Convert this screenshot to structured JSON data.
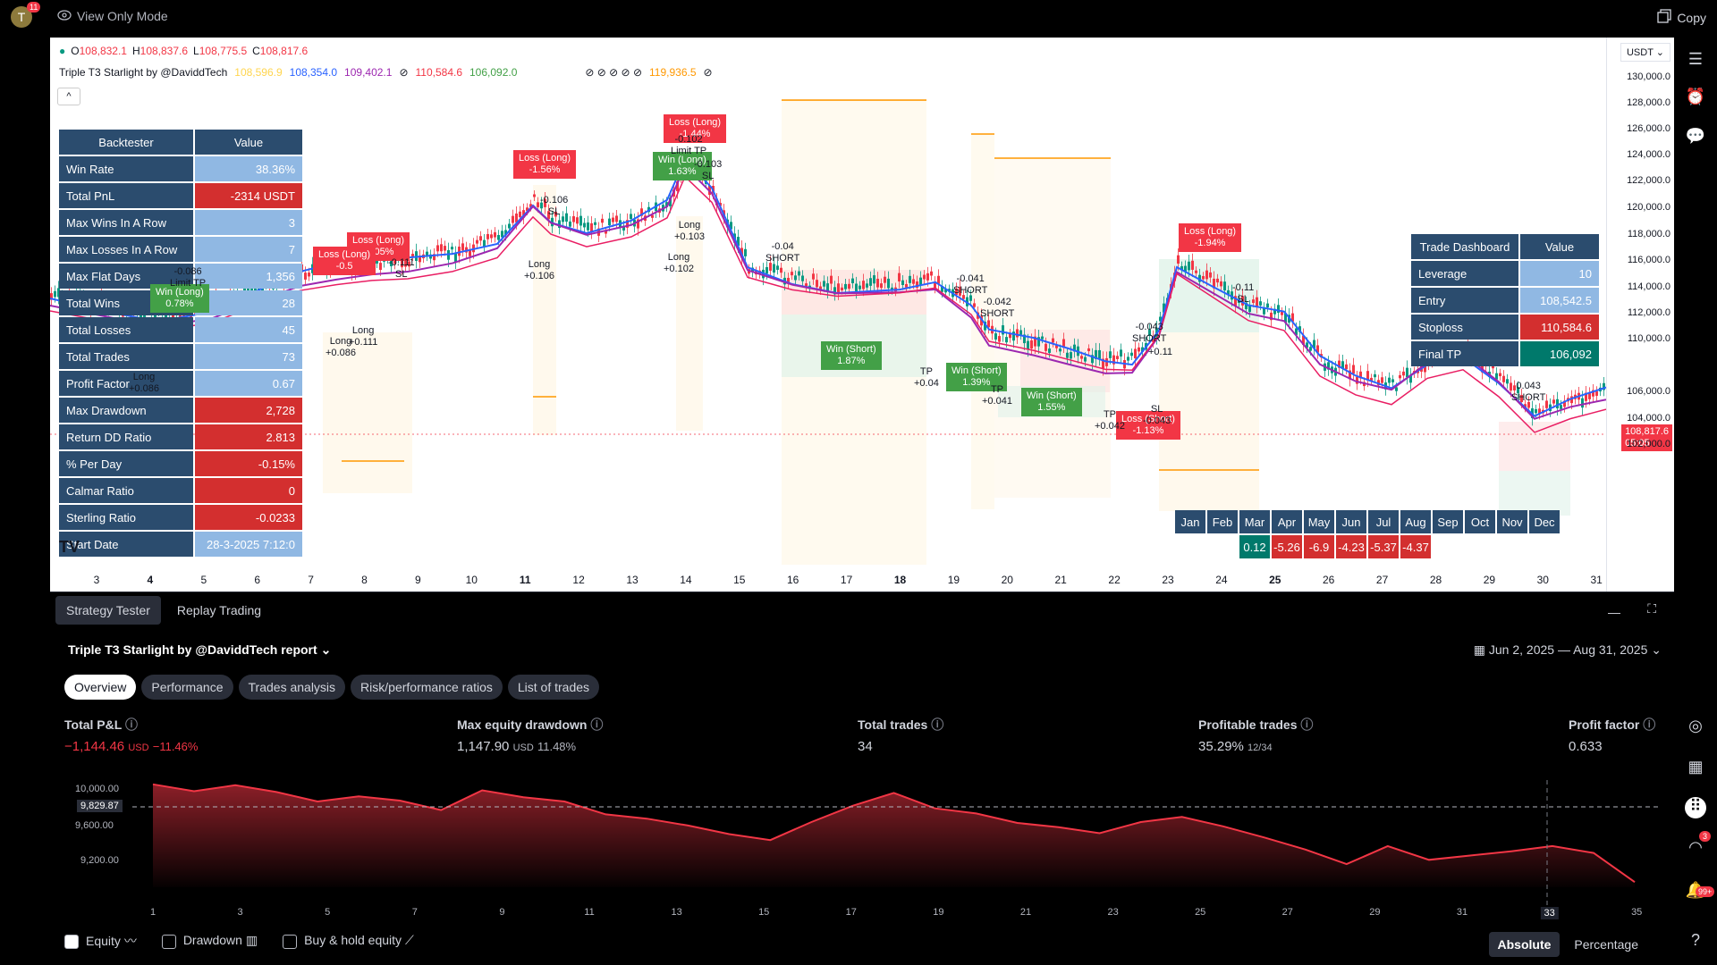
{
  "topbar": {
    "avatar": "T",
    "avatar_badge": "11",
    "view_only": "View Only Mode",
    "copy": "Copy"
  },
  "ohlc": {
    "o_label": "O",
    "o": "108,832.1",
    "h_label": "H",
    "h": "108,837.6",
    "l_label": "L",
    "l": "108,775.5",
    "c_label": "C",
    "c": "108,817.6"
  },
  "indicator": {
    "name": "Triple T3 Starlight by @DaviddTech",
    "vals": [
      "108,596.9",
      "108,354.0",
      "109,402.1",
      "110,584.6",
      "106,092.0",
      "119,936.5"
    ],
    "colors": [
      "#ffd54f",
      "#2962ff",
      "#9c27b0",
      "#f23645",
      "#43a047",
      "#ff9800"
    ]
  },
  "collapse": "^",
  "backtester": {
    "header": [
      "Backtester",
      "Value"
    ],
    "rows": [
      {
        "k": "Win Rate",
        "v": "38.36%",
        "red": false
      },
      {
        "k": "Total PnL",
        "v": "-2314 USDT",
        "red": true
      },
      {
        "k": "Max Wins In A Row",
        "v": "3",
        "red": false
      },
      {
        "k": "Max Losses In A Row",
        "v": "7",
        "red": false
      },
      {
        "k": "Max Flat Days",
        "v": "1,356",
        "red": false
      },
      {
        "k": "Total Wins",
        "v": "28",
        "red": false
      },
      {
        "k": "Total Losses",
        "v": "45",
        "red": false
      },
      {
        "k": "Total Trades",
        "v": "73",
        "red": false
      },
      {
        "k": "Profit Factor",
        "v": "0.67",
        "red": false
      },
      {
        "k": "Max Drawdown",
        "v": "2,728",
        "red": true
      },
      {
        "k": "Return DD Ratio",
        "v": "2.813",
        "red": true
      },
      {
        "k": "% Per Day",
        "v": "-0.15%",
        "red": true
      },
      {
        "k": "Calmar Ratio",
        "v": "0",
        "red": true
      },
      {
        "k": "Sterling Ratio",
        "v": "-0.0233",
        "red": true
      },
      {
        "k": "Start Date",
        "v": "28-3-2025 7:12:0",
        "red": false
      }
    ]
  },
  "trade_dashboard": {
    "header": [
      "Trade Dashboard",
      "Value"
    ],
    "rows": [
      {
        "k": "Leverage",
        "v": "10",
        "c": ""
      },
      {
        "k": "Entry",
        "v": "108,542.5",
        "c": ""
      },
      {
        "k": "Stoploss",
        "v": "110,584.6",
        "c": "r"
      },
      {
        "k": "Final TP",
        "v": "106,092",
        "c": "g"
      }
    ]
  },
  "monthly": {
    "months": [
      "Jan",
      "Feb",
      "Mar",
      "Apr",
      "May",
      "Jun",
      "Jul",
      "Aug",
      "Sep",
      "Oct",
      "Nov",
      "Dec"
    ],
    "values": [
      "",
      "",
      "0.12",
      "-5.26",
      "-6.9",
      "-4.23",
      "-5.37",
      "-4.37",
      "",
      "",
      "",
      ""
    ]
  },
  "price_axis": {
    "currency": "USDT",
    "labels": [
      "130,000.0",
      "128,000.0",
      "126,000.0",
      "124,000.0",
      "122,000.0",
      "120,000.0",
      "118,000.0",
      "116,000.0",
      "114,000.0",
      "112,000.0",
      "110,000.0",
      "106,000.0",
      "104,000.0",
      "102,000.0"
    ],
    "current": "108,817.6",
    "countdown": "05:05"
  },
  "time_axis": [
    "3",
    "4",
    "5",
    "6",
    "7",
    "8",
    "9",
    "10",
    "11",
    "12",
    "13",
    "14",
    "15",
    "16",
    "17",
    "18",
    "19",
    "20",
    "21",
    "22",
    "23",
    "24",
    "25",
    "26",
    "27",
    "28",
    "29",
    "30",
    "31"
  ],
  "trades": [
    {
      "t": "loss",
      "text": "Loss (Long)\n-1.56%"
    },
    {
      "t": "loss",
      "text": "Loss (Long)\n-1.44%"
    },
    {
      "t": "loss",
      "text": "Loss (Long)\n-1.05%"
    },
    {
      "t": "loss",
      "text": "Loss (Long)\n-0.5"
    },
    {
      "t": "loss",
      "text": "Loss (Long)\n-1.94%"
    },
    {
      "t": "loss",
      "text": "Loss (Short)\n-1.13%"
    },
    {
      "t": "win",
      "text": "Win (Short)\n1.87%"
    },
    {
      "t": "win",
      "text": "Win (Short)\n1.39%"
    },
    {
      "t": "win",
      "text": "Win (Short)\n1.55%"
    },
    {
      "t": "win",
      "text": "Win (Long)\n1.63%"
    },
    {
      "t": "win",
      "text": "Win (Long)\n0.78%"
    }
  ],
  "chart_labels": {
    "l1": "-0.106\nSL",
    "l2": "Long\n+0.106",
    "l3": "-0.102\nLimit TP",
    "l4": "-0.103\nSL",
    "l5": "Long\n+0.103",
    "l6": "Long\n+0.102",
    "l7": "-0.04\nSHORT",
    "l8": "-0.041\nSHORT",
    "l9": "-0.042\nSHORT",
    "l10": "-0.043\nSHORT",
    "l11": "-0.11\nSL",
    "l12": "0.043\nSHORT",
    "l13": "TP\n+0.04",
    "l14": "TP\n+0.041",
    "l15": "TP\n+0.042",
    "l16": "SL\n-0.043",
    "l17": "-0.086\nLimit TP",
    "l18": "-0.111\nSL",
    "l19": "Long\n+0.111",
    "l20": "Long\n+0.086",
    "l21": "Long\n+0.086",
    "l22": "+0.11"
  },
  "panel": {
    "tabs": [
      "Strategy Tester",
      "Replay Trading"
    ],
    "title": "Triple T3 Starlight by @DaviddTech",
    "title_suffix": "report",
    "date_range": "Jun 2, 2025 — Aug 31, 2025",
    "subtabs": [
      "Overview",
      "Performance",
      "Trades analysis",
      "Risk/performance ratios",
      "List of trades"
    ],
    "metrics": [
      {
        "k": "Total P&L",
        "v": "−1,144.46",
        "unit": "USD",
        "extra": "−11.46%",
        "neg": true
      },
      {
        "k": "Max equity drawdown",
        "v": "1,147.90",
        "unit": "USD",
        "extra": "11.48%",
        "neg": false
      },
      {
        "k": "Total trades",
        "v": "34",
        "unit": "",
        "extra": "",
        "neg": false
      },
      {
        "k": "Profitable trades",
        "v": "35.29%",
        "unit": "12/34",
        "extra": "",
        "neg": false
      },
      {
        "k": "Profit factor",
        "v": "0.633",
        "unit": "",
        "extra": "",
        "neg": false
      }
    ],
    "equity_y": [
      "10,000.00",
      "9,600.00",
      "9,200.00"
    ],
    "equity_cursor": "9,829.87",
    "equity_x": [
      "1",
      "3",
      "5",
      "7",
      "9",
      "11",
      "13",
      "15",
      "17",
      "19",
      "21",
      "23",
      "25",
      "27",
      "29",
      "31",
      "33",
      "35"
    ],
    "checks": [
      {
        "label": "Equity",
        "on": true
      },
      {
        "label": "Drawdown",
        "on": false
      },
      {
        "label": "Buy & hold equity",
        "on": false
      }
    ],
    "mode": [
      "Absolute",
      "Percentage"
    ]
  },
  "equity_data": {
    "type": "area",
    "values": [
      10000,
      9920,
      9990,
      9910,
      9800,
      9860,
      9810,
      9700,
      9930,
      9850,
      9800,
      9650,
      9600,
      9520,
      9420,
      9350,
      9560,
      9750,
      9900,
      9720,
      9660,
      9550,
      9500,
      9430,
      9560,
      9620,
      9510,
      9380,
      9240,
      9070,
      9280,
      9120,
      9170,
      9220,
      9280,
      9200,
      8860
    ],
    "ylim": [
      8800,
      10050
    ]
  },
  "sidebar_badges": {
    "rss": "3",
    "bell": "99+"
  }
}
